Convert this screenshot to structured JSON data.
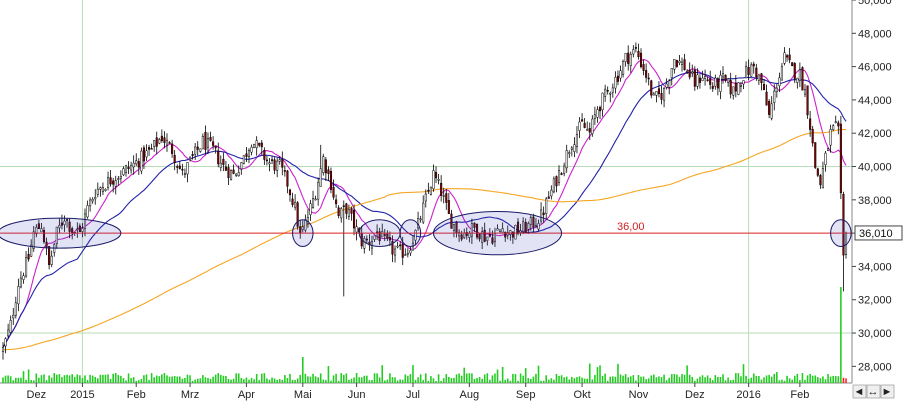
{
  "chart_data": {
    "type": "candlestick",
    "y_axis": {
      "range": [
        27000,
        50000
      ],
      "ticks": [
        "28,000",
        "30,000",
        "32,000",
        "34,000",
        "36,000",
        "38,000",
        "40,000",
        "42,000",
        "44,000",
        "46,000",
        "48,000",
        "50,000"
      ],
      "tick_values": [
        28000,
        30000,
        32000,
        34000,
        36000,
        38000,
        40000,
        42000,
        44000,
        46000,
        48000,
        50000
      ],
      "position": "right"
    },
    "x_axis": {
      "labels": [
        "Dez",
        "2015",
        "Feb",
        "Mrz",
        "Apr",
        "Mai",
        "Jun",
        "Jul",
        "Aug",
        "Sep",
        "Okt",
        "Nov",
        "Dez",
        "2016",
        "Feb"
      ],
      "label_index": [
        13,
        31,
        52,
        73,
        95,
        117,
        138,
        160,
        182,
        204,
        226,
        248,
        270,
        291,
        311
      ]
    },
    "reference_line": {
      "label": "36,00",
      "value": 36000,
      "color": "#dd2222"
    },
    "last_price": {
      "label": "36,010",
      "value": 36010
    },
    "grid_vertical_index": [
      31,
      291
    ],
    "grid_horizontal_values": [
      30000,
      40000
    ],
    "num_bars": 330,
    "keypoints": [
      [
        0,
        29000
      ],
      [
        3,
        30500
      ],
      [
        6,
        33000
      ],
      [
        10,
        34500
      ],
      [
        12,
        36000
      ],
      [
        15,
        36500
      ],
      [
        18,
        34000
      ],
      [
        21,
        36000
      ],
      [
        24,
        37000
      ],
      [
        27,
        36200
      ],
      [
        30,
        36000
      ],
      [
        33,
        37500
      ],
      [
        36,
        38500
      ],
      [
        40,
        39000
      ],
      [
        45,
        39500
      ],
      [
        50,
        40000
      ],
      [
        54,
        40500
      ],
      [
        58,
        41000
      ],
      [
        62,
        41800
      ],
      [
        66,
        41000
      ],
      [
        70,
        39500
      ],
      [
        74,
        40500
      ],
      [
        78,
        41500
      ],
      [
        82,
        41000
      ],
      [
        86,
        40000
      ],
      [
        90,
        39500
      ],
      [
        94,
        40500
      ],
      [
        97,
        41600
      ],
      [
        100,
        41000
      ],
      [
        104,
        40200
      ],
      [
        108,
        40000
      ],
      [
        111,
        39000
      ],
      [
        114,
        37500
      ],
      [
        116,
        35800
      ],
      [
        119,
        37000
      ],
      [
        122,
        38500
      ],
      [
        125,
        40500
      ],
      [
        128,
        39000
      ],
      [
        131,
        37000
      ],
      [
        134,
        37500
      ],
      [
        137,
        36500
      ],
      [
        140,
        35500
      ],
      [
        143,
        35500
      ],
      [
        146,
        36000
      ],
      [
        149,
        35500
      ],
      [
        152,
        35000
      ],
      [
        155,
        34800
      ],
      [
        158,
        35000
      ],
      [
        161,
        36000
      ],
      [
        164,
        37500
      ],
      [
        168,
        39500
      ],
      [
        171,
        38500
      ],
      [
        174,
        37000
      ],
      [
        177,
        36200
      ],
      [
        180,
        36000
      ],
      [
        184,
        36300
      ],
      [
        188,
        35800
      ],
      [
        191,
        35800
      ],
      [
        195,
        36300
      ],
      [
        198,
        36000
      ],
      [
        202,
        36200
      ],
      [
        206,
        36500
      ],
      [
        210,
        37000
      ],
      [
        214,
        38500
      ],
      [
        218,
        40000
      ],
      [
        222,
        41500
      ],
      [
        226,
        42500
      ],
      [
        229,
        42000
      ],
      [
        232,
        43500
      ],
      [
        236,
        44500
      ],
      [
        240,
        45500
      ],
      [
        243,
        46500
      ],
      [
        247,
        47000
      ],
      [
        251,
        45500
      ],
      [
        254,
        44000
      ],
      [
        258,
        44500
      ],
      [
        262,
        46500
      ],
      [
        266,
        46000
      ],
      [
        270,
        45000
      ],
      [
        273,
        45500
      ],
      [
        277,
        44800
      ],
      [
        281,
        45200
      ],
      [
        285,
        44500
      ],
      [
        289,
        45500
      ],
      [
        293,
        46000
      ],
      [
        296,
        45000
      ],
      [
        299,
        43000
      ],
      [
        302,
        45000
      ],
      [
        305,
        46500
      ],
      [
        308,
        45800
      ],
      [
        311,
        45500
      ],
      [
        313,
        44500
      ],
      [
        315,
        42500
      ],
      [
        317,
        40000
      ],
      [
        319,
        39000
      ],
      [
        321,
        40500
      ],
      [
        323,
        42000
      ],
      [
        325,
        42300
      ],
      [
        326,
        42000
      ],
      [
        327,
        38000
      ],
      [
        328,
        34500
      ],
      [
        329,
        36010
      ]
    ],
    "ellipse_marks": [
      {
        "center_index": 22,
        "center_value": 36000,
        "half_width_bars": 24,
        "half_height_value": 900
      },
      {
        "center_index": 117,
        "center_value": 36000,
        "half_width_bars": 4,
        "half_height_value": 800
      },
      {
        "center_index": 147,
        "center_value": 36000,
        "half_width_bars": 8,
        "half_height_value": 800
      },
      {
        "center_index": 159,
        "center_value": 36000,
        "half_width_bars": 4,
        "half_height_value": 800
      },
      {
        "center_index": 193,
        "center_value": 36000,
        "half_width_bars": 25,
        "half_height_value": 1300
      },
      {
        "center_index": 327,
        "center_value": 36000,
        "half_width_bars": 4,
        "half_height_value": 800
      }
    ],
    "moving_averages": [
      {
        "period": 10,
        "color": "#cc22cc"
      },
      {
        "period": 30,
        "color": "#2222aa"
      },
      {
        "period": 150,
        "color": "#f5a623"
      }
    ],
    "colors": {
      "candle_up": "#ffffff",
      "candle_down": "#8b0000",
      "candle_outline": "#000000",
      "grid": "#b7ddb7",
      "volume_bar": "#22cc22",
      "volume_bar_last": "#ff2222"
    }
  },
  "footer": {
    "nav_arrow_left": "◄",
    "nav_expand": "↔",
    "nav_arrow_right": "►"
  }
}
